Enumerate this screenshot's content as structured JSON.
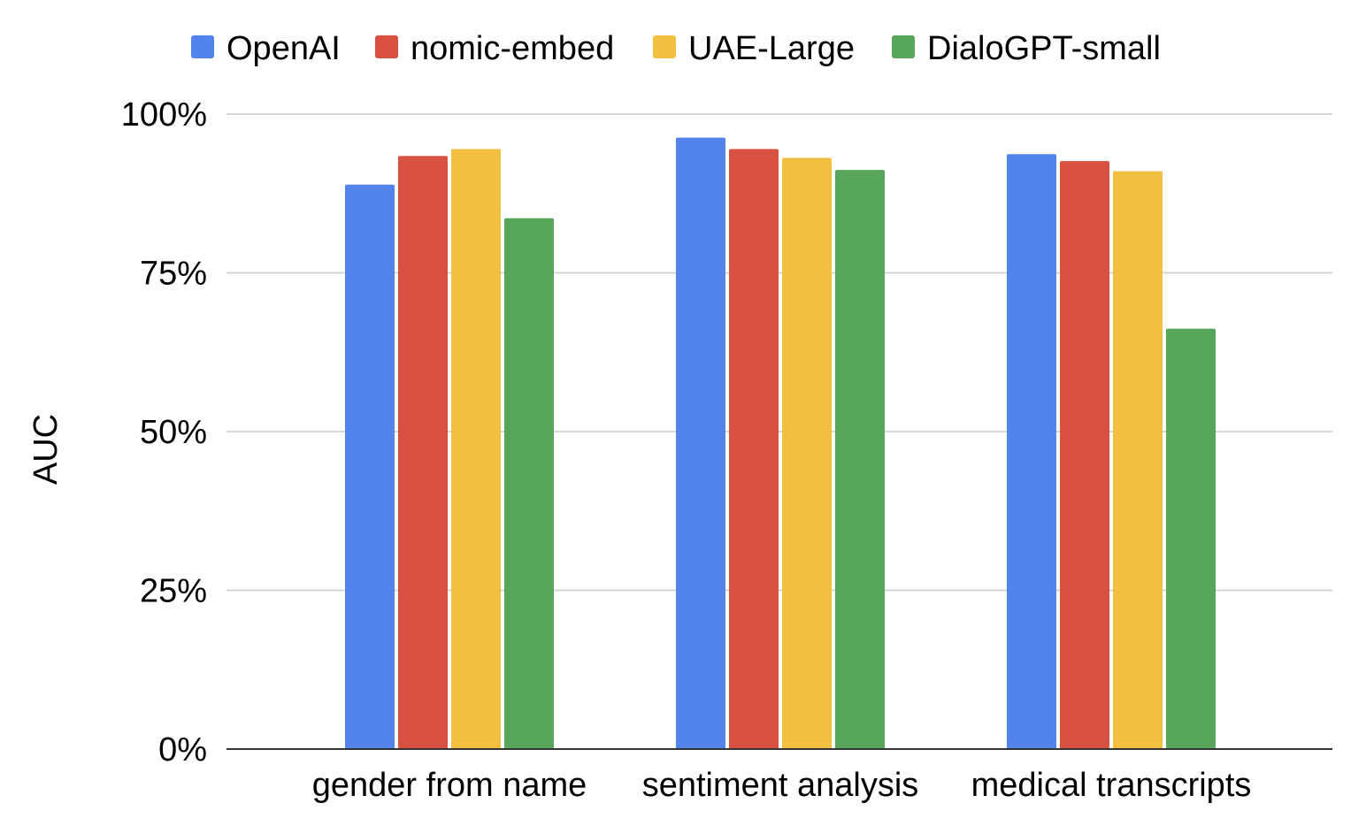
{
  "chart_data": {
    "type": "bar",
    "categories": [
      "gender from name",
      "sentiment analysis",
      "medical transcripts"
    ],
    "series": [
      {
        "name": "OpenAI",
        "color": "#5384ec",
        "values": [
          0.889,
          0.963,
          0.937
        ]
      },
      {
        "name": "nomic-embed",
        "color": "#d85140",
        "values": [
          0.934,
          0.945,
          0.926
        ]
      },
      {
        "name": "UAE-Large",
        "color": "#f1bf42",
        "values": [
          0.945,
          0.931,
          0.91
        ]
      },
      {
        "name": "DialoGPT-small",
        "color": "#58a65c",
        "values": [
          0.836,
          0.912,
          0.662
        ]
      }
    ],
    "ylabel": "AUC",
    "xlabel": "",
    "ylim": [
      0,
      1
    ],
    "yticks": [
      {
        "value": 0,
        "label": "0%"
      },
      {
        "value": 0.25,
        "label": "25%"
      },
      {
        "value": 0.5,
        "label": "50%"
      },
      {
        "value": 0.75,
        "label": "75%"
      },
      {
        "value": 1,
        "label": "100%"
      }
    ],
    "grid": true,
    "legend_position": "top"
  }
}
